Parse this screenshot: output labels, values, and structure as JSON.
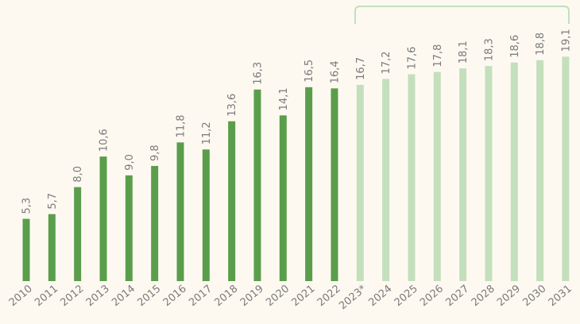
{
  "chart_data": {
    "type": "bar",
    "categories": [
      "2010",
      "2011",
      "2012",
      "2013",
      "2014",
      "2015",
      "2016",
      "2017",
      "2018",
      "2019",
      "2020",
      "2021",
      "2022",
      "2023*",
      "2024",
      "2025",
      "2026",
      "2027",
      "2028",
      "2029",
      "2030",
      "2031"
    ],
    "values": [
      5.3,
      5.7,
      8.0,
      10.6,
      9.0,
      9.8,
      11.8,
      11.2,
      13.6,
      16.3,
      14.1,
      16.5,
      16.4,
      16.7,
      17.2,
      17.6,
      17.8,
      18.1,
      18.3,
      18.6,
      18.8,
      19.1
    ],
    "value_labels": [
      "5,3",
      "5,7",
      "8,0",
      "10,6",
      "9,0",
      "9,8",
      "11,8",
      "11,2",
      "13,6",
      "16,3",
      "14,1",
      "16,5",
      "16,4",
      "16,7",
      "17,2",
      "17,6",
      "17,8",
      "18,1",
      "18,3",
      "18,6",
      "18,8",
      "19,1"
    ],
    "colors": [
      "#5a9e4b",
      "#5a9e4b",
      "#5a9e4b",
      "#5a9e4b",
      "#5a9e4b",
      "#5a9e4b",
      "#5a9e4b",
      "#5a9e4b",
      "#5a9e4b",
      "#5a9e4b",
      "#5a9e4b",
      "#5a9e4b",
      "#5a9e4b",
      "#c4dfbc",
      "#c4dfbc",
      "#c4dfbc",
      "#c4dfbc",
      "#c4dfbc",
      "#c4dfbc",
      "#c4dfbc",
      "#c4dfbc",
      "#c4dfbc"
    ],
    "ylim": [
      0,
      20
    ]
  }
}
